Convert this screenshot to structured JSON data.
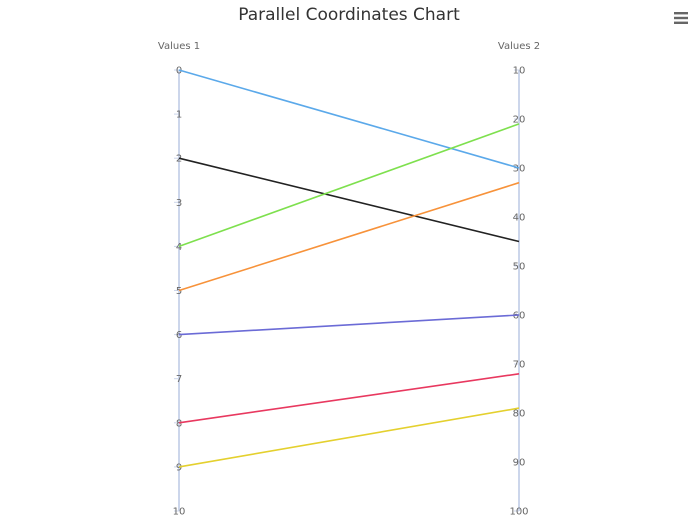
{
  "chart_data": {
    "type": "line",
    "title": "Parallel Coordinates Chart",
    "axes": [
      {
        "name": "Values 1",
        "min": 0,
        "max": 10,
        "ticks": [
          0,
          1,
          2,
          3,
          4,
          5,
          6,
          7,
          8,
          9,
          10
        ]
      },
      {
        "name": "Values 2",
        "min": 10,
        "max": 100,
        "ticks": [
          10,
          20,
          30,
          40,
          50,
          60,
          70,
          80,
          90,
          100
        ]
      }
    ],
    "series": [
      {
        "values": [
          0,
          30
        ],
        "color": "#5ba9ea"
      },
      {
        "values": [
          2,
          45
        ],
        "color": "#222222"
      },
      {
        "values": [
          4,
          21
        ],
        "color": "#7ee04e"
      },
      {
        "values": [
          5,
          33
        ],
        "color": "#f7923a"
      },
      {
        "values": [
          6,
          60
        ],
        "color": "#6b6bd6"
      },
      {
        "values": [
          8,
          72
        ],
        "color": "#e8385f"
      },
      {
        "values": [
          9,
          79
        ],
        "color": "#e4d02e"
      }
    ],
    "legend": "none",
    "grid": false
  },
  "menu": {
    "icon": "hamburger-menu-icon"
  }
}
